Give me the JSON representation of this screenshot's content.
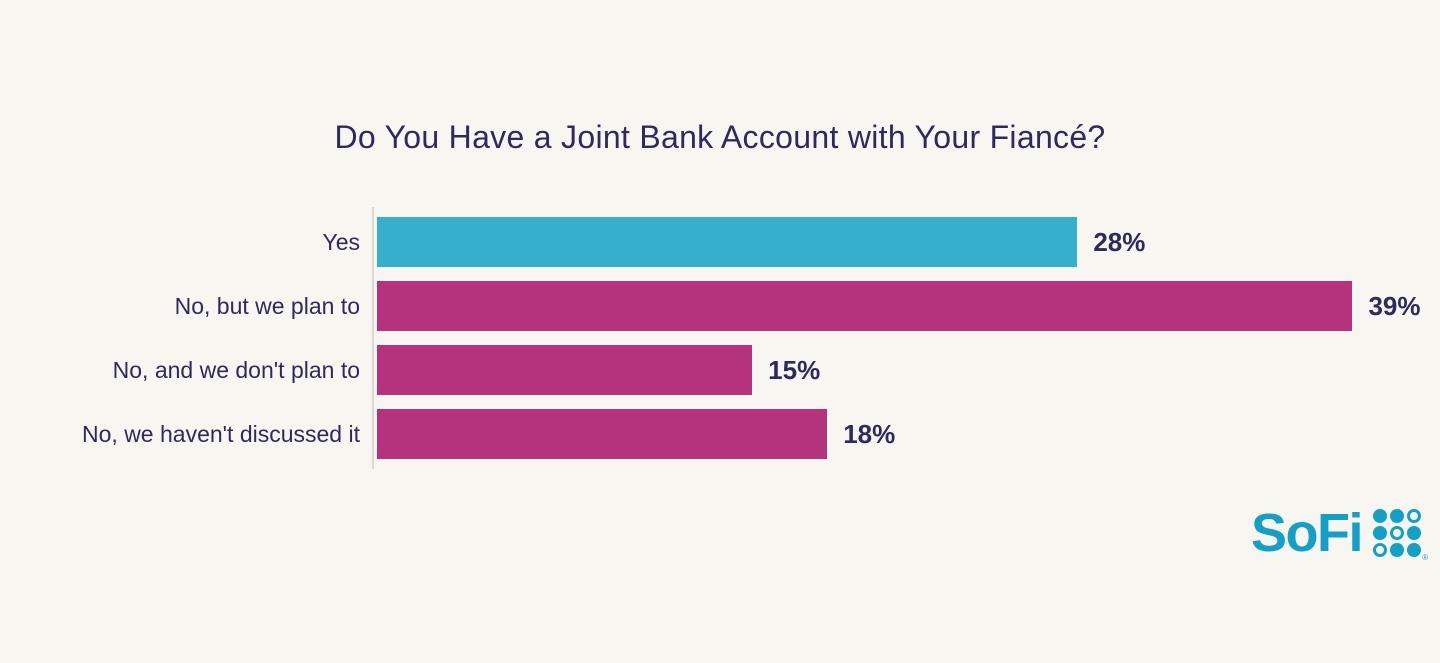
{
  "title": "Do You Have a Joint Bank Account with Your Fiancé?",
  "chart_data": {
    "type": "bar",
    "orientation": "horizontal",
    "title": "Do You Have a Joint Bank Account with Your Fiancé?",
    "categories": [
      "Yes",
      "No, but we plan to",
      "No, and we don't plan to",
      "No, we haven't discussed it"
    ],
    "values": [
      28,
      39,
      15,
      18
    ],
    "value_labels": [
      "28%",
      "39%",
      "15%",
      "18%"
    ],
    "series_colors": [
      "#36aecd",
      "#b5337c",
      "#b5337c",
      "#b5337c"
    ],
    "xlabel": "",
    "ylabel": "",
    "xlim": [
      0,
      42.5
    ],
    "grid": false,
    "legend": false,
    "value_label_position": "end-of-bar",
    "rows": [
      {
        "label": "Yes",
        "value": 28,
        "value_label": "28%",
        "color": "#36aecd"
      },
      {
        "label": "No, but we plan to",
        "value": 39,
        "value_label": "39%",
        "color": "#b5337c"
      },
      {
        "label": "No, and we don't plan to",
        "value": 15,
        "value_label": "15%",
        "color": "#b5337c"
      },
      {
        "label": "No, we haven't discussed it",
        "value": 18,
        "value_label": "18%",
        "color": "#b5337c"
      }
    ]
  },
  "branding": {
    "logo_text": "SoFi",
    "registered_mark": "®",
    "logo_color": "#149fc7"
  },
  "colors": {
    "background": "#f8f6f0",
    "text_navy": "#2e2a5e",
    "bar_teal": "#36aecd",
    "bar_magenta": "#b5337c",
    "axis_line": "#dbd8d0"
  }
}
